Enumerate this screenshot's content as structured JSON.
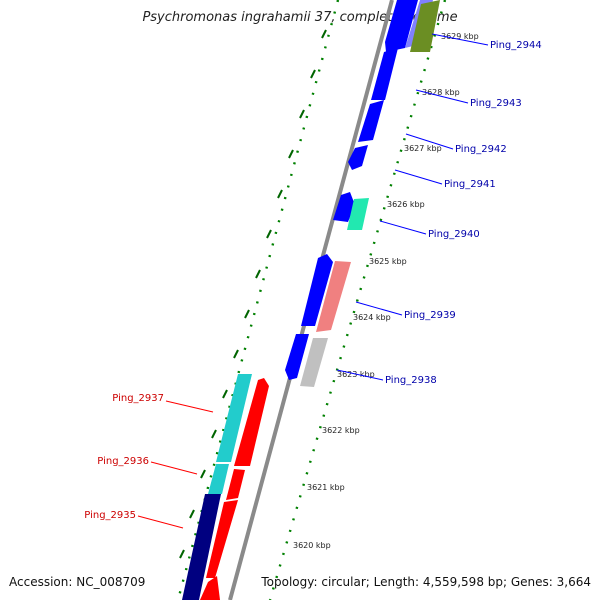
{
  "title": "Psychromonas ingrahamii 37, complete genome",
  "footer": {
    "accession": "Accession: NC_008709",
    "stats": "Topology: circular; Length: 4,559,598 bp; Genes: 3,664"
  },
  "ruler": [
    "3629 kbp",
    "3628 kbp",
    "3627 kbp",
    "3626 kbp",
    "3625 kbp",
    "3624 kbp",
    "3623 kbp",
    "3622 kbp",
    "3621 kbp",
    "3620 kbp"
  ],
  "genes_right": [
    "Ping_2944",
    "Ping_2943",
    "Ping_2942",
    "Ping_2941",
    "Ping_2940",
    "Ping_2939",
    "Ping_2938"
  ],
  "genes_left": [
    "Ping_2937",
    "Ping_2936",
    "Ping_2935"
  ],
  "colors": {
    "forward": "#0000ff",
    "reverse": "#ff0000",
    "dark_blue": "#000080",
    "cyan": "#22cccc",
    "green": "#6b8e23",
    "teal": "#22e8b0",
    "pink": "#f08080",
    "gray": "#c0c0c0",
    "right_label": "#0000aa",
    "left_label": "#cc0000",
    "dots": "#008000",
    "ticks": "#006400"
  }
}
